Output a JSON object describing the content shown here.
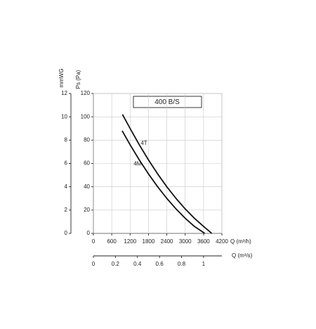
{
  "chart_data": {
    "type": "line",
    "title": "400 B/S",
    "x_label": "Q (m³/h)",
    "x2_label": "Q (m³/s)",
    "y_label": "Ps (Pa)",
    "y2_label": "mmWG",
    "xlim": [
      0,
      4200
    ],
    "xticks": [
      0,
      600,
      1200,
      1800,
      2400,
      3000,
      3600,
      4200
    ],
    "x2lim": [
      0,
      1.1667
    ],
    "x2ticks": [
      0,
      0.2,
      0.4,
      0.6,
      0.8,
      1.0
    ],
    "ylim": [
      0,
      120
    ],
    "yticks": [
      0,
      20,
      40,
      60,
      80,
      100,
      120
    ],
    "y2lim": [
      0,
      12
    ],
    "y2ticks": [
      0,
      2,
      4,
      6,
      8,
      10,
      12
    ],
    "grid": true,
    "series": [
      {
        "name": "4T",
        "color": "#111111",
        "x": [
          950,
          1200,
          1500,
          1800,
          2100,
          2400,
          2700,
          3000,
          3300,
          3600,
          3870
        ],
        "values": [
          102,
          90,
          76,
          63,
          51,
          40,
          30,
          21,
          13,
          6,
          0
        ]
      },
      {
        "name": "4M",
        "color": "#111111",
        "x": [
          940,
          1200,
          1500,
          1800,
          2100,
          2400,
          2700,
          3000,
          3300,
          3640
        ],
        "values": [
          88,
          76,
          63,
          51,
          40,
          30,
          21,
          13,
          6,
          0
        ]
      }
    ]
  }
}
